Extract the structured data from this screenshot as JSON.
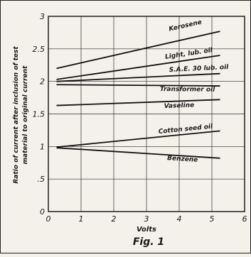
{
  "chart_data": {
    "type": "line",
    "caption": "Fig. 1",
    "xlabel": "Volts",
    "ylabel_line1": "Ratio of current after inclusion of test",
    "ylabel_line2": "material to original current",
    "xlim": [
      0,
      6
    ],
    "ylim": [
      0,
      3
    ],
    "xticks": [
      0,
      1,
      2,
      3,
      4,
      5,
      6
    ],
    "yticks": [
      0,
      0.5,
      1,
      1.5,
      2,
      2.5,
      3
    ],
    "ytick_labels": [
      "0",
      ".5",
      "1",
      "1.5",
      "2",
      "2.5",
      "3"
    ],
    "grid": true,
    "series": [
      {
        "name": "Kerosene",
        "x": [
          0.25,
          5.25
        ],
        "y": [
          2.2,
          2.77
        ],
        "label_at": [
          4.2,
          2.83
        ]
      },
      {
        "name": "Light, lub. oil",
        "x": [
          0.25,
          5.25
        ],
        "y": [
          2.03,
          2.4
        ],
        "label_at": [
          4.3,
          2.4
        ]
      },
      {
        "name": "S.A.E. 30 lub. oil",
        "x": [
          0.25,
          5.25
        ],
        "y": [
          2.0,
          2.12
        ],
        "label_at": [
          4.6,
          2.17
        ]
      },
      {
        "name": "Transformer oil",
        "x": [
          0.25,
          5.25
        ],
        "y": [
          1.95,
          1.93
        ],
        "label_at": [
          4.25,
          1.85
        ]
      },
      {
        "name": "Vaseline",
        "x": [
          0.25,
          5.25
        ],
        "y": [
          1.63,
          1.72
        ],
        "label_at": [
          4.0,
          1.6
        ]
      },
      {
        "name": "Cotton seed oil",
        "x": [
          0.25,
          5.25
        ],
        "y": [
          0.99,
          1.24
        ],
        "label_at": [
          4.2,
          1.24
        ]
      },
      {
        "name": "Benzene",
        "x": [
          0.25,
          5.25
        ],
        "y": [
          0.98,
          0.82
        ],
        "label_at": [
          4.1,
          0.78
        ]
      }
    ]
  }
}
